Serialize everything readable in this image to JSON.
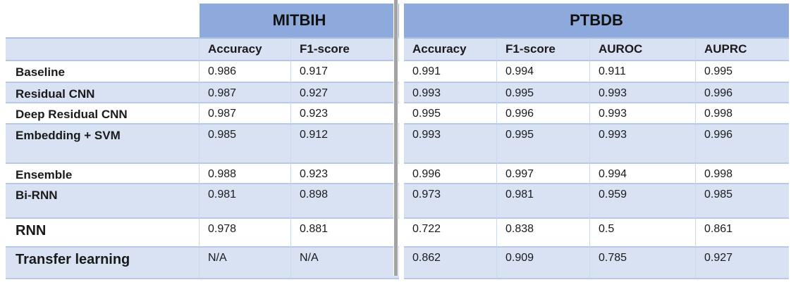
{
  "colors": {
    "header_blue": "#8EA9DB",
    "stripe_blue": "#D9E2F3",
    "row_white": "#FFFFFF",
    "horizontal_border": "#B9CAE9",
    "vertical_border": "#C9D7EF",
    "divider_gray": "#A3A3A3",
    "text": "#1A1A1A"
  },
  "chart_data": {
    "type": "table",
    "column_groups": [
      {
        "label": "MITBIH",
        "span": 2
      },
      {
        "label": "PTBDB",
        "span": 4
      }
    ],
    "columns": [
      "Accuracy",
      "F1-score",
      "Accuracy",
      "F1-score",
      "AUROC",
      "AUPRC"
    ],
    "rows": [
      {
        "label": "Baseline",
        "values": [
          "0.986",
          "0.917",
          "0.991",
          "0.994",
          "0.911",
          "0.995"
        ]
      },
      {
        "label": "Residual CNN",
        "values": [
          "0.987",
          "0.927",
          "0.993",
          "0.995",
          "0.993",
          "0.996"
        ]
      },
      {
        "label": "Deep Residual CNN",
        "values": [
          "0.987",
          "0.923",
          "0.995",
          "0.996",
          "0.993",
          "0.998"
        ]
      },
      {
        "label": "Embedding + SVM",
        "values": [
          "0.985",
          "0.912",
          "0.993",
          "0.995",
          "0.993",
          "0.996"
        ]
      },
      {
        "label": "Ensemble",
        "values": [
          "0.988",
          "0.923",
          "0.996",
          "0.997",
          "0.994",
          "0.998"
        ]
      },
      {
        "label": "Bi-RNN",
        "values": [
          "0.981",
          "0.898",
          "0.973",
          "0.981",
          "0.959",
          "0.985"
        ]
      },
      {
        "label": "RNN",
        "values": [
          "0.978",
          "0.881",
          "0.722",
          "0.838",
          "0.5",
          "0.861"
        ]
      },
      {
        "label": "Transfer learning",
        "values": [
          "N/A",
          "N/A",
          "0.862",
          "0.909",
          "0.785",
          "0.927"
        ]
      }
    ]
  }
}
